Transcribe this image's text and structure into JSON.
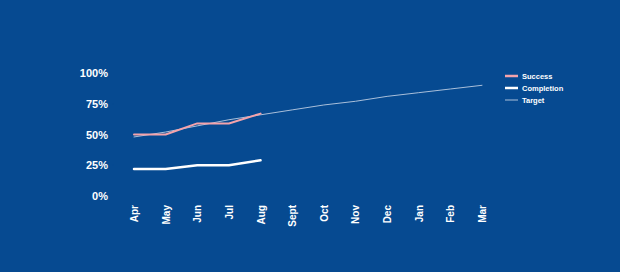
{
  "chart_data": {
    "type": "line",
    "categories": [
      "Apr",
      "May",
      "Jun",
      "Jul",
      "Aug",
      "Sept",
      "Oct",
      "Nov",
      "Dec",
      "Jan",
      "Feb",
      "Mar"
    ],
    "series": [
      {
        "name": "Success",
        "color": "#f4a3ab",
        "values": [
          50,
          50,
          59,
          59,
          67,
          null,
          null,
          null,
          null,
          null,
          null,
          null
        ]
      },
      {
        "name": "Completion",
        "color": "#ffffff",
        "values": [
          22,
          22,
          25,
          25,
          29,
          null,
          null,
          null,
          null,
          null,
          null,
          null
        ]
      },
      {
        "name": "Target",
        "color": "#a9bfda",
        "values": [
          48,
          52,
          57,
          62,
          66,
          70,
          74,
          77,
          81,
          84,
          87,
          90
        ]
      }
    ],
    "ylim": [
      0,
      100
    ],
    "yticks": [
      {
        "value": 0,
        "label": "0%"
      },
      {
        "value": 25,
        "label": "25%"
      },
      {
        "value": 50,
        "label": "50%"
      },
      {
        "value": 75,
        "label": "75%"
      },
      {
        "value": 100,
        "label": "100%"
      }
    ],
    "grid": false,
    "legend": "right"
  }
}
